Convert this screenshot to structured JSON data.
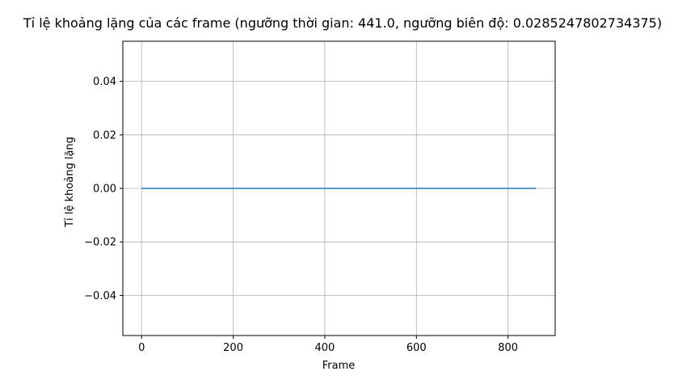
{
  "chart_data": {
    "type": "line",
    "title": "Tỉ lệ khoảng lặng của các frame (ngưỡng thời gian: 441.0, ngưỡng biên độ: 0.0285247802734375)",
    "xlabel": "Frame",
    "ylabel": "Tỉ lệ khoảng lặng",
    "xlim": [
      -41,
      903
    ],
    "ylim": [
      -0.055,
      0.055
    ],
    "x_ticks": [
      0,
      200,
      400,
      600,
      800
    ],
    "x_tick_labels": [
      "0",
      "200",
      "400",
      "600",
      "800"
    ],
    "y_ticks": [
      -0.04,
      -0.02,
      0.0,
      0.02,
      0.04
    ],
    "y_tick_labels": [
      "−0.04",
      "−0.02",
      "0.00",
      "0.02",
      "0.04"
    ],
    "grid": true,
    "series": [
      {
        "color": "#1f77b4",
        "x": [
          0,
          861
        ],
        "y": [
          0.0,
          0.0
        ]
      }
    ]
  }
}
